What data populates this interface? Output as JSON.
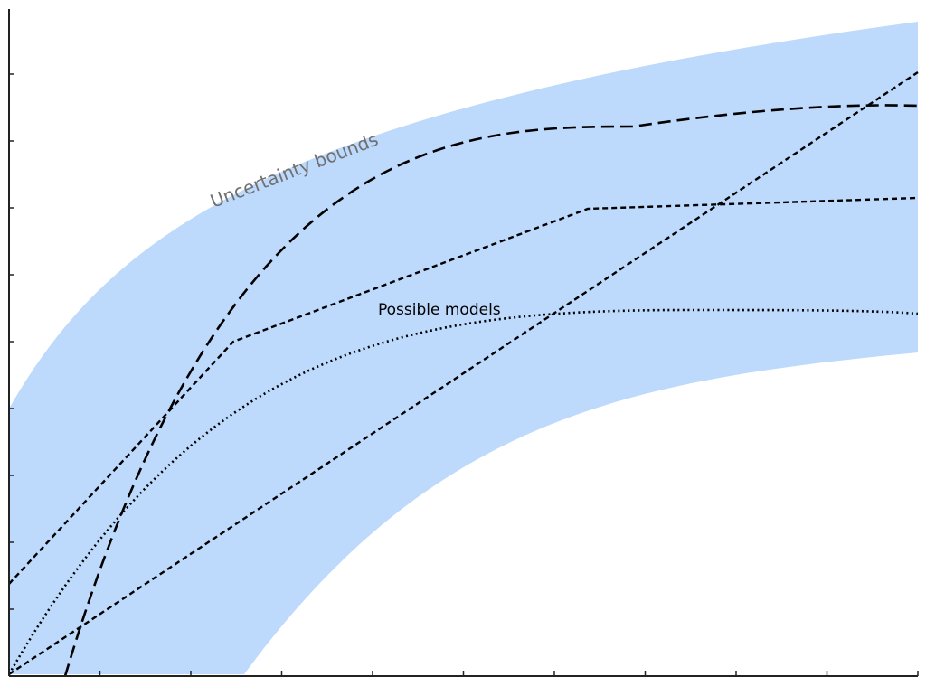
{
  "labels": {
    "band": "Uncertainty bounds",
    "models": "Possible models"
  },
  "colors": {
    "band": "#bdd9fb",
    "line": "#000000",
    "band_label": "#707070",
    "axis": "#222222"
  },
  "axes": {
    "x_ticks": 10,
    "y_ticks": 10
  }
}
